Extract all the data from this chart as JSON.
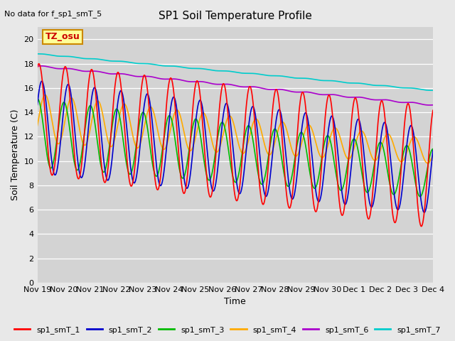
{
  "title": "SP1 Soil Temperature Profile",
  "subtitle": "No data for f_sp1_smT_5",
  "xlabel": "Time",
  "ylabel": "Soil Temperature (C)",
  "ylim": [
    0,
    21
  ],
  "yticks": [
    0,
    2,
    4,
    6,
    8,
    10,
    12,
    14,
    16,
    18,
    20
  ],
  "tz_label": "TZ_osu",
  "background_color": "#e8e8e8",
  "plot_bg_color": "#d3d3d3",
  "colors": {
    "smT1": "#ff0000",
    "smT2": "#0000cc",
    "smT3": "#00bb00",
    "smT4": "#ffaa00",
    "smT6": "#aa00cc",
    "smT7": "#00cccc"
  },
  "x_tick_labels": [
    "Nov 19",
    "Nov 20",
    "Nov 21",
    "Nov 22",
    "Nov 23",
    "Nov 24",
    "Nov 25",
    "Nov 26",
    "Nov 27",
    "Nov 28",
    "Nov 29",
    "Nov 30",
    "Dec 1",
    "Dec 2",
    "Dec 3",
    "Dec 4"
  ]
}
